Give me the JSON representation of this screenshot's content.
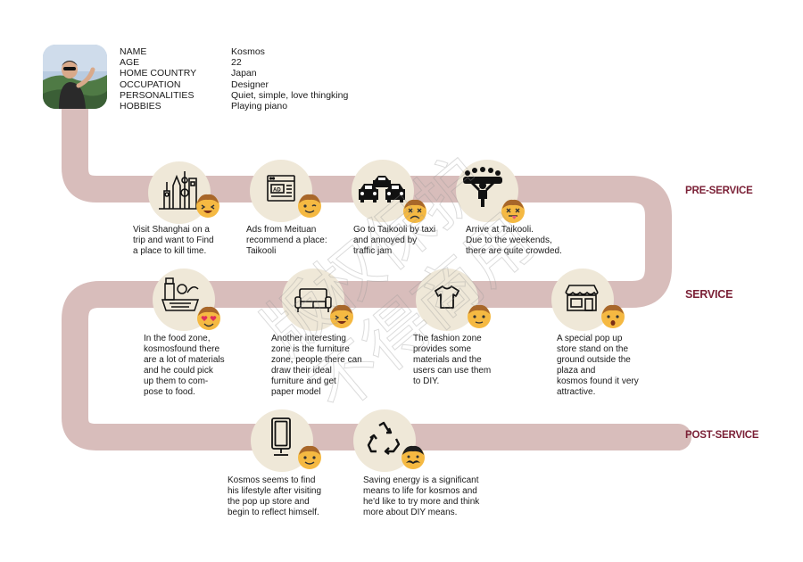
{
  "persona": {
    "labels": [
      "NAME",
      "AGE",
      "HOME COUNTRY",
      "OCCUPATION",
      "PERSONALITIES",
      "HOBBIES"
    ],
    "values": [
      "Kosmos",
      "22",
      "Japan",
      "Designer",
      "Quiet, simple, love thingking",
      "Playing piano"
    ]
  },
  "stages": {
    "pre_service": "PRE-SERVICE",
    "service": "SERVICE",
    "post_service": "POST-SERVICE"
  },
  "watermark": [
    "版权保护",
    "不得商用"
  ],
  "colors": {
    "path": "#d8bdbb",
    "stage_text": "#7a1f35",
    "circle": "#efe8d8",
    "face": "#f5b942",
    "hair": "#a8672a"
  },
  "steps": [
    {
      "icon": "shanghai-skyline-icon",
      "face": "laughing",
      "caption": [
        "Visit Shanghai on a",
        "trip and want to Find",
        "a place to kill time."
      ]
    },
    {
      "icon": "ad-browser-icon",
      "face": "winking",
      "caption": [
        "Ads from Meituan",
        "recommend a place:",
        "Taikooli"
      ]
    },
    {
      "icon": "taxi-traffic-icon",
      "face": "annoyed",
      "caption": [
        "Go to Taikooli by taxi",
        "and annoyed by",
        "traffic jam"
      ]
    },
    {
      "icon": "crowd-icon",
      "face": "dizzy",
      "caption": [
        "Arrive at Taikooli.",
        "Due to the weekends,",
        "there are quite crowded."
      ]
    },
    {
      "icon": "food-basket-icon",
      "face": "heart-eyes",
      "caption": [
        "In the food zone,",
        "kosmosfound there",
        "are a lot of materials",
        "and he could pick",
        "up them to com-",
        "pose to food."
      ]
    },
    {
      "icon": "sofa-icon",
      "face": "laughing",
      "caption": [
        "Another interesting",
        "zone is the furniture",
        "zone, people there can",
        "draw their ideal",
        "furniture and get",
        "paper model"
      ]
    },
    {
      "icon": "tshirt-icon",
      "face": "neutral",
      "caption": [
        "The fashion zone",
        "provides some",
        "materials and the",
        "users can use them",
        "to DIY."
      ]
    },
    {
      "icon": "popup-store-icon",
      "face": "surprised",
      "caption": [
        "A special pop up",
        "store stand on the",
        "ground outside the",
        "plaza and",
        "kosmos found it very",
        "attractive."
      ]
    },
    {
      "icon": "mirror-icon",
      "face": "smiling",
      "caption": [
        "Kosmos seems to  find",
        "his lifestyle after visiting",
        "the pop up store and",
        "begin to reflect himself."
      ]
    },
    {
      "icon": "recycle-icon",
      "face": "mustache",
      "caption": [
        "Saving energy is a significant",
        "means to life for kosmos and",
        "he'd like to try more and think",
        "more about DIY means."
      ]
    }
  ]
}
